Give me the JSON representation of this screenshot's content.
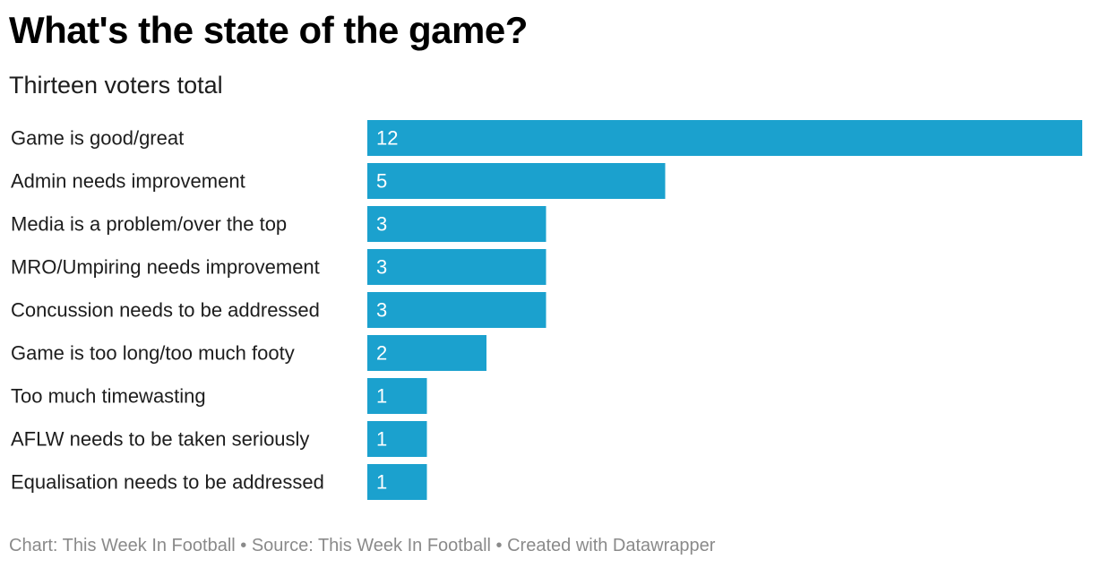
{
  "header": {
    "title": "What's the state of the game?",
    "subtitle": "Thirteen voters total"
  },
  "footer": {
    "text": "Chart: This Week In Football • Source: This Week In Football • Created with Datawrapper"
  },
  "colors": {
    "bar": "#1ba1ce",
    "value_label": "#ffffff",
    "category_label": "#1d1d1d"
  },
  "chart_data": {
    "type": "bar",
    "orientation": "horizontal",
    "title": "What's the state of the game?",
    "subtitle": "Thirteen voters total",
    "categories": [
      "Game is good/great",
      "Admin needs improvement",
      "Media is a problem/over the top",
      "MRO/Umpiring needs improvement",
      "Concussion needs to be addressed",
      "Game is too long/too much footy",
      "Too much timewasting",
      "AFLW needs to be taken seriously",
      "Equalisation needs to be addressed"
    ],
    "values": [
      12,
      5,
      3,
      3,
      3,
      2,
      1,
      1,
      1
    ],
    "xlim": [
      0,
      12
    ],
    "grid": false,
    "legend": "none",
    "data_labels": "inside-bar-start"
  }
}
